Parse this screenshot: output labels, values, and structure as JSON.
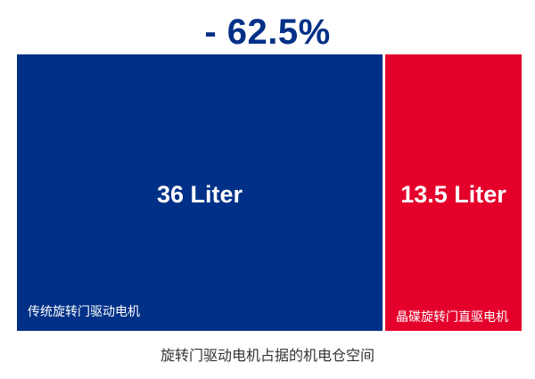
{
  "headline": "- 62.5%",
  "caption": "旋转门驱动电机占据的机电仓空间",
  "colors": {
    "blue": "#003087",
    "red": "#E4002B",
    "headline": "#003087"
  },
  "chart_data": {
    "type": "bar",
    "unit": "Liter",
    "categories": [
      "传统旋转门驱动电机",
      "晶碟旋转门直驱电机"
    ],
    "values": [
      36,
      13.5
    ],
    "value_labels": [
      "36 Liter",
      "13.5 Liter"
    ],
    "reduction_label": "- 62.5%",
    "title": "",
    "xlabel": "",
    "ylabel": ""
  }
}
